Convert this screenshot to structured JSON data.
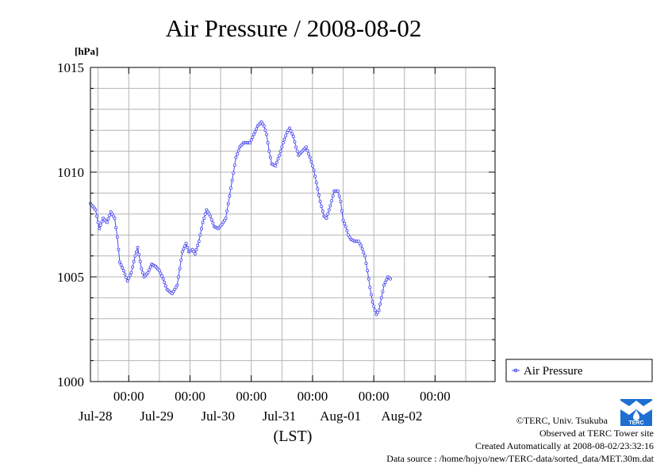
{
  "chart_data": {
    "type": "line",
    "title": "Air Pressure / 2008-08-02",
    "ylabel": "[hPa]",
    "xlabel": "(LST)",
    "ylim": [
      1000,
      1015
    ],
    "y_ticks": [
      "1000",
      "1005",
      "1010",
      "1015"
    ],
    "xlim": [
      "2008-07-27T09:00",
      "2008-08-02T23:30"
    ],
    "x_ticks": [
      {
        "time": "2008-07-28T00:00",
        "label": "00:00",
        "date": "Jul-28"
      },
      {
        "time": "2008-07-29T00:00",
        "label": "00:00",
        "date": "Jul-29"
      },
      {
        "time": "2008-07-30T00:00",
        "label": "00:00",
        "date": "Jul-30"
      },
      {
        "time": "2008-07-31T00:00",
        "label": "00:00",
        "date": "Jul-31"
      },
      {
        "time": "2008-08-01T00:00",
        "label": "00:00",
        "date": "Aug-01"
      },
      {
        "time": "2008-08-02T00:00",
        "label": "00:00",
        "date": "Aug-02"
      }
    ],
    "grid": true,
    "legend": "right",
    "series": [
      {
        "name": "Air Pressure",
        "color": "#4a4af0",
        "points": [
          [
            "2008-07-27T09:00",
            1008.5
          ],
          [
            "2008-07-27T11:00",
            1008.2
          ],
          [
            "2008-07-27T12:30",
            1007.3
          ],
          [
            "2008-07-27T14:00",
            1007.8
          ],
          [
            "2008-07-27T15:30",
            1007.6
          ],
          [
            "2008-07-27T17:00",
            1008.1
          ],
          [
            "2008-07-27T18:30",
            1007.8
          ],
          [
            "2008-07-27T19:30",
            1006.9
          ],
          [
            "2008-07-27T20:30",
            1005.7
          ],
          [
            "2008-07-27T22:00",
            1005.3
          ],
          [
            "2008-07-27T23:30",
            1004.8
          ],
          [
            "2008-07-28T01:00",
            1005.2
          ],
          [
            "2008-07-28T02:30",
            1006.0
          ],
          [
            "2008-07-28T03:30",
            1006.4
          ],
          [
            "2008-07-28T05:00",
            1005.4
          ],
          [
            "2008-07-28T06:00",
            1005.0
          ],
          [
            "2008-07-28T07:30",
            1005.2
          ],
          [
            "2008-07-28T09:00",
            1005.6
          ],
          [
            "2008-07-28T10:30",
            1005.5
          ],
          [
            "2008-07-28T12:00",
            1005.3
          ],
          [
            "2008-07-28T13:30",
            1004.9
          ],
          [
            "2008-07-28T15:00",
            1004.4
          ],
          [
            "2008-07-28T17:00",
            1004.2
          ],
          [
            "2008-07-28T19:00",
            1004.6
          ],
          [
            "2008-07-28T20:00",
            1005.4
          ],
          [
            "2008-07-28T21:00",
            1006.2
          ],
          [
            "2008-07-28T22:30",
            1006.6
          ],
          [
            "2008-07-28T23:30",
            1006.2
          ],
          [
            "2008-07-29T01:00",
            1006.3
          ],
          [
            "2008-07-29T02:00",
            1006.1
          ],
          [
            "2008-07-29T03:30",
            1006.7
          ],
          [
            "2008-07-29T05:00",
            1007.6
          ],
          [
            "2008-07-29T06:30",
            1008.2
          ],
          [
            "2008-07-29T08:00",
            1007.9
          ],
          [
            "2008-07-29T09:30",
            1007.4
          ],
          [
            "2008-07-29T11:00",
            1007.3
          ],
          [
            "2008-07-29T12:30",
            1007.5
          ],
          [
            "2008-07-29T14:00",
            1007.8
          ],
          [
            "2008-07-29T15:00",
            1008.5
          ],
          [
            "2008-07-29T16:30",
            1009.6
          ],
          [
            "2008-07-29T18:00",
            1010.7
          ],
          [
            "2008-07-29T19:30",
            1011.2
          ],
          [
            "2008-07-29T21:00",
            1011.4
          ],
          [
            "2008-07-29T23:30",
            1011.4
          ],
          [
            "2008-07-30T01:00",
            1011.8
          ],
          [
            "2008-07-30T02:30",
            1012.2
          ],
          [
            "2008-07-30T04:00",
            1012.4
          ],
          [
            "2008-07-30T05:00",
            1012.2
          ],
          [
            "2008-07-30T06:00",
            1011.8
          ],
          [
            "2008-07-30T07:00",
            1011.0
          ],
          [
            "2008-07-30T08:00",
            1010.4
          ],
          [
            "2008-07-30T09:30",
            1010.3
          ],
          [
            "2008-07-30T11:00",
            1010.8
          ],
          [
            "2008-07-30T12:30",
            1011.4
          ],
          [
            "2008-07-30T14:00",
            1011.9
          ],
          [
            "2008-07-30T15:00",
            1012.1
          ],
          [
            "2008-07-30T16:30",
            1011.7
          ],
          [
            "2008-07-30T17:30",
            1011.2
          ],
          [
            "2008-07-30T18:30",
            1010.8
          ],
          [
            "2008-07-30T20:00",
            1011.0
          ],
          [
            "2008-07-30T21:30",
            1011.2
          ],
          [
            "2008-07-30T23:00",
            1010.7
          ],
          [
            "2008-07-31T00:30",
            1010.1
          ],
          [
            "2008-07-31T01:30",
            1009.5
          ],
          [
            "2008-07-31T03:00",
            1008.6
          ],
          [
            "2008-07-31T04:30",
            1007.9
          ],
          [
            "2008-07-31T05:30",
            1007.8
          ],
          [
            "2008-07-31T07:00",
            1008.4
          ],
          [
            "2008-07-31T08:30",
            1009.1
          ],
          [
            "2008-07-31T10:00",
            1009.1
          ],
          [
            "2008-07-31T11:00",
            1008.6
          ],
          [
            "2008-07-31T12:00",
            1007.7
          ],
          [
            "2008-07-31T13:00",
            1007.4
          ],
          [
            "2008-07-31T14:00",
            1007.0
          ],
          [
            "2008-07-31T15:00",
            1006.8
          ],
          [
            "2008-07-31T16:30",
            1006.7
          ],
          [
            "2008-07-31T18:00",
            1006.7
          ],
          [
            "2008-07-31T19:00",
            1006.5
          ],
          [
            "2008-07-31T20:30",
            1006.0
          ],
          [
            "2008-07-31T21:30",
            1005.3
          ],
          [
            "2008-07-31T22:30",
            1004.5
          ],
          [
            "2008-07-31T23:30",
            1003.8
          ],
          [
            "2008-08-01T01:00",
            1003.2
          ],
          [
            "2008-08-01T02:00",
            1003.4
          ],
          [
            "2008-08-01T03:00",
            1004.0
          ],
          [
            "2008-08-01T04:00",
            1004.6
          ],
          [
            "2008-08-01T05:30",
            1005.0
          ],
          [
            "2008-08-01T06:30",
            1004.9
          ]
        ]
      }
    ]
  },
  "footer": {
    "copyright": "©TERC, Univ. Tsukuba",
    "observed": "Observed at TERC Tower site",
    "created": "Created Automatically at 2008-08-02/23:32:16",
    "source": "Data source : /home/hojyo/new/TERC-data/sorted_data/MET.30m.dat",
    "logo_text": "TERC"
  },
  "colors": {
    "series": "#4a4af0",
    "grid": "#b4b4b4",
    "logo": "#1e6fd0"
  }
}
